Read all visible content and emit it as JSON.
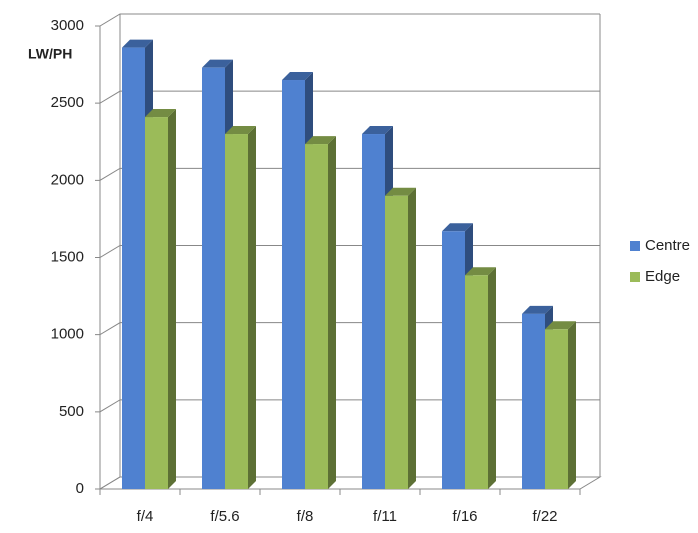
{
  "chart_data": {
    "type": "bar3d",
    "y_label": "LW/PH",
    "categories": [
      "f/4",
      "f/5.6",
      "f/8",
      "f/11",
      "f/16",
      "f/22"
    ],
    "series": [
      {
        "name": "Centre",
        "color": "#4f81d0",
        "values": [
          2860,
          2730,
          2650,
          2300,
          1670,
          1135
        ]
      },
      {
        "name": "Edge",
        "color": "#9bbb59",
        "values": [
          2410,
          2300,
          2235,
          1900,
          1385,
          1035
        ]
      }
    ],
    "ylim": [
      0,
      3000
    ],
    "yticks": [
      0,
      500,
      1000,
      1500,
      2000,
      2500,
      3000
    ],
    "grid": true,
    "legend": "right"
  }
}
